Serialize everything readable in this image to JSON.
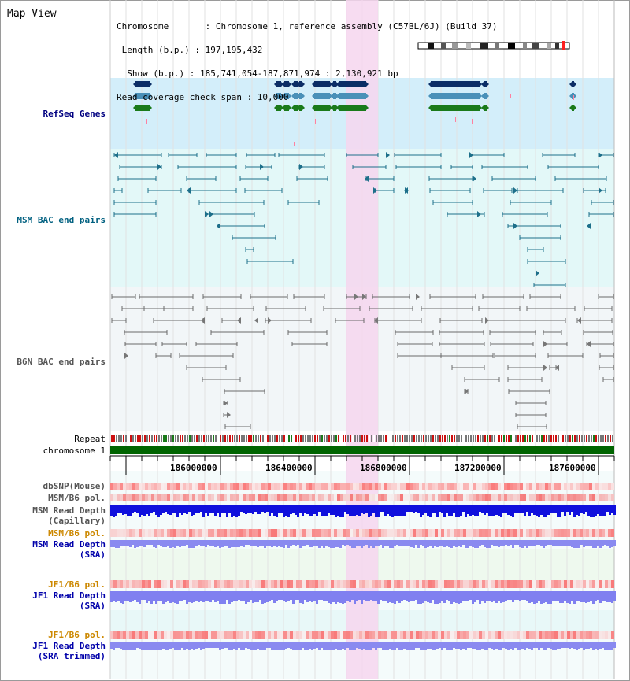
{
  "view": {
    "title": "Map View",
    "info_lines": [
      "Chromosome       : Chromosome 1, reference assembly (C57BL/6J) (Build 37)",
      " Length (b.p.) : 197,195,432",
      "  Show (b.p.) : 185,741,054-187,871,974 : 2,130,921 bp",
      "Read coverage check span : 10,000"
    ]
  },
  "tracks": {
    "refseq": "RefSeq Genes",
    "msm_bac": "MSM BAC end pairs",
    "b6n_bac": "B6N BAC end pairs",
    "repeat": "Repeat",
    "chromosome": "chromosome 1",
    "dbsnp": "dbSNP(Mouse)",
    "msm_b6_pol_1": "MSM/B6 pol.",
    "msm_depth_cap_1": "MSM Read Depth",
    "msm_depth_cap_2": "(Capillary)",
    "msm_b6_pol_2": "MSM/B6 pol.",
    "msm_depth_sra_1": "MSM Read Depth",
    "msm_depth_sra_2": "(SRA)",
    "jf1_b6_pol_1": "JF1/B6 pol.",
    "jf1_depth_sra_1": "JF1 Read Depth",
    "jf1_depth_sra_2": "(SRA)",
    "jf1_b6_pol_2": "JF1/B6 pol.",
    "jf1_depth_trim_1": "JF1 Read Depth",
    "jf1_depth_trim_2": "(SRA trimmed)"
  },
  "axis": {
    "ticks": [
      "186000000",
      "186400000",
      "186800000",
      "187200000",
      "187600000"
    ]
  },
  "colors": {
    "highlight": "#f6d6ef",
    "refseq_bg": "#d3eefa",
    "bac_bg": "#e3f8f8",
    "b6n_bg": "#f2f6f8",
    "chromosome": "#006400",
    "refseq_label": "#000080",
    "msm_label": "#006080",
    "b6n_label": "#555555",
    "pol_label": "#cc8800",
    "depth_label": "#0000aa"
  }
}
